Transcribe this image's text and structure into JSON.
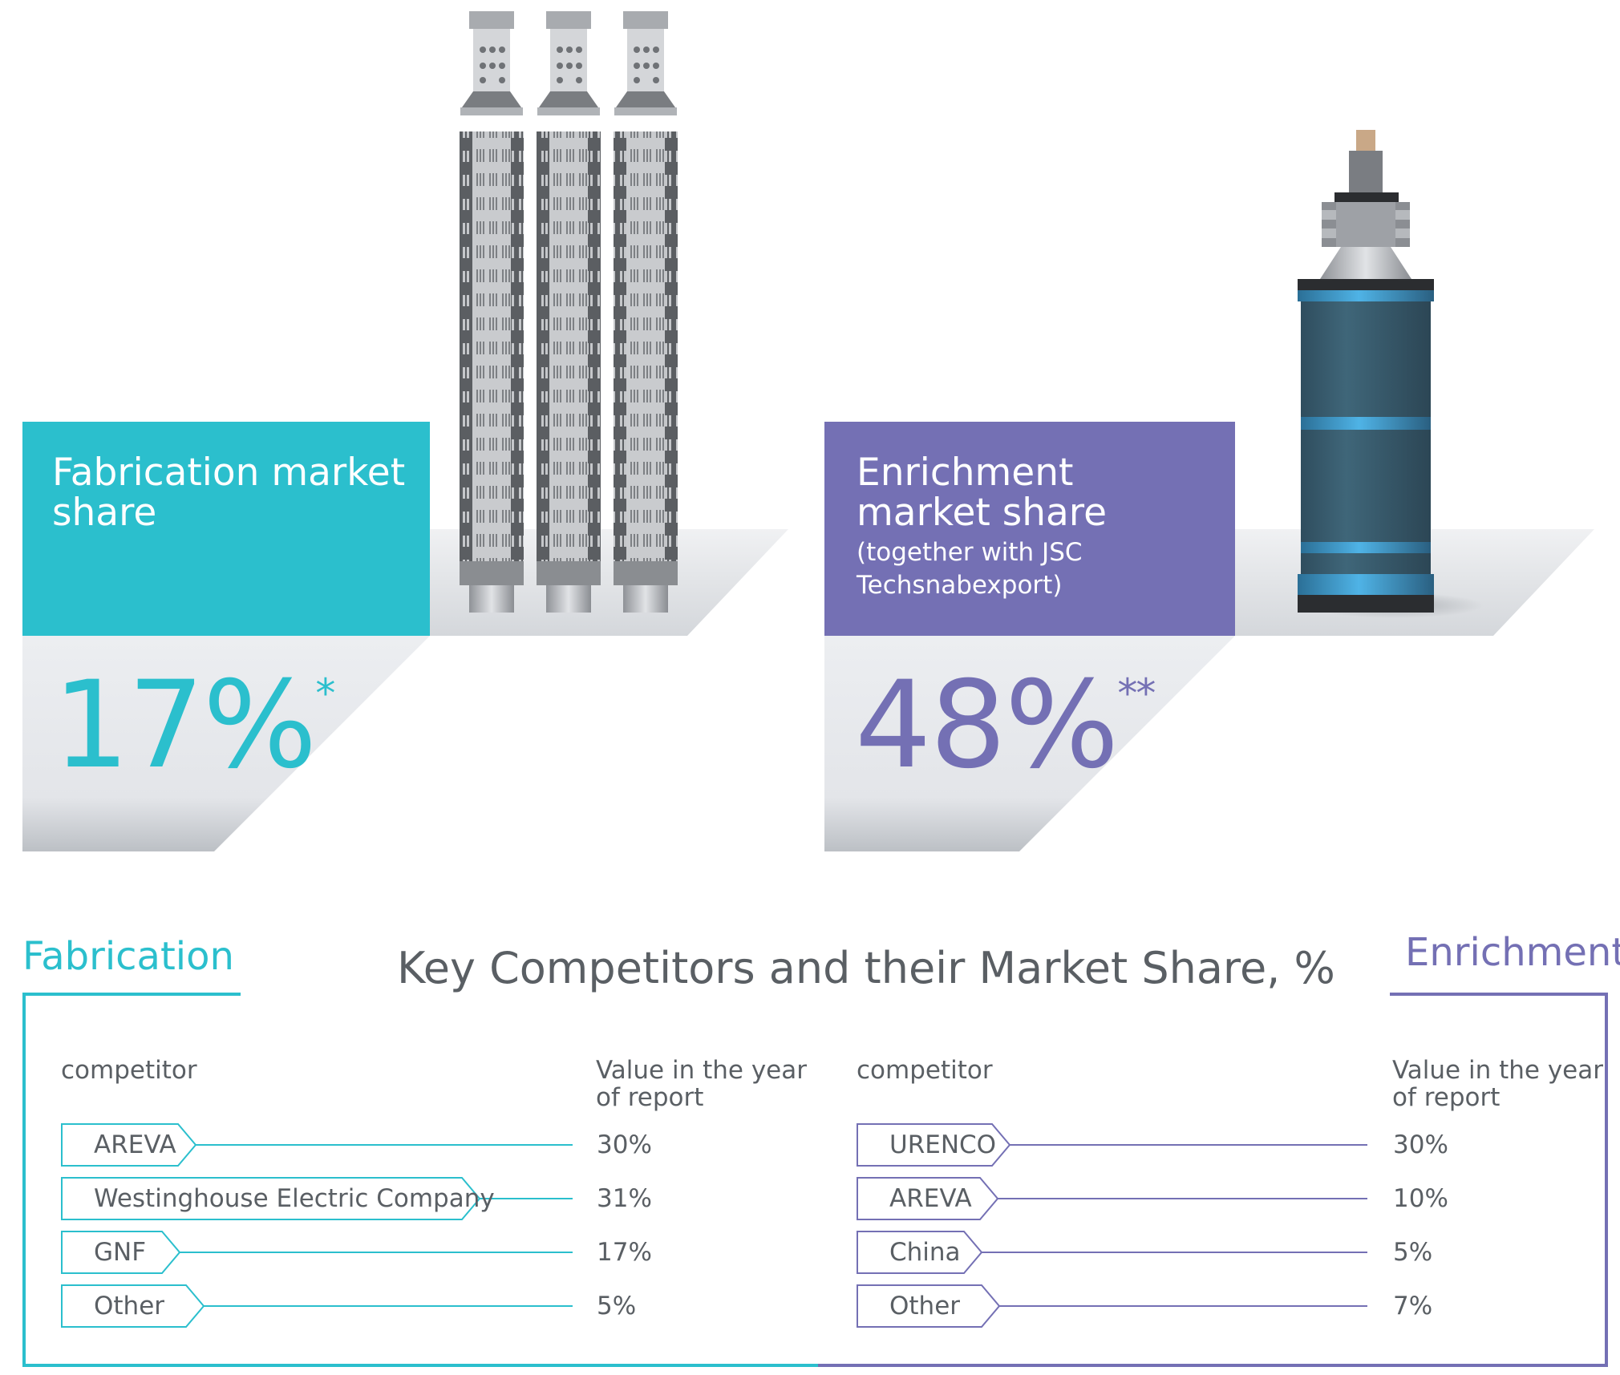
{
  "fabrication_card": {
    "title": "Fabrication market share",
    "value": "17%",
    "footnote_mark": "*",
    "color": "#2bbfcd"
  },
  "enrichment_card": {
    "title": "Enrichment market share",
    "subtitle": "(together with JSC Techsnabexport)",
    "value": "48%",
    "footnote_mark": "**",
    "color": "#7470b4"
  },
  "competitors": {
    "title": "Key Competitors and their Market Share, %",
    "fabrication": {
      "label": "Fabrication",
      "col_competitor": "competitor",
      "col_value": "Value in the year of report",
      "rows": [
        {
          "name": "AREVA",
          "value": "30%"
        },
        {
          "name": "Westinghouse Electric Company",
          "value": "31%"
        },
        {
          "name": "GNF",
          "value": "17%"
        },
        {
          "name": "Other",
          "value": "5%"
        }
      ]
    },
    "enrichment": {
      "label": "Enrichment",
      "col_competitor": "competitor",
      "col_value": "Value in the year of report",
      "rows": [
        {
          "name": "URENCO",
          "value": "30%"
        },
        {
          "name": "AREVA",
          "value": "10%"
        },
        {
          "name": "China",
          "value": "5%"
        },
        {
          "name": "Other",
          "value": "7%"
        }
      ]
    }
  }
}
